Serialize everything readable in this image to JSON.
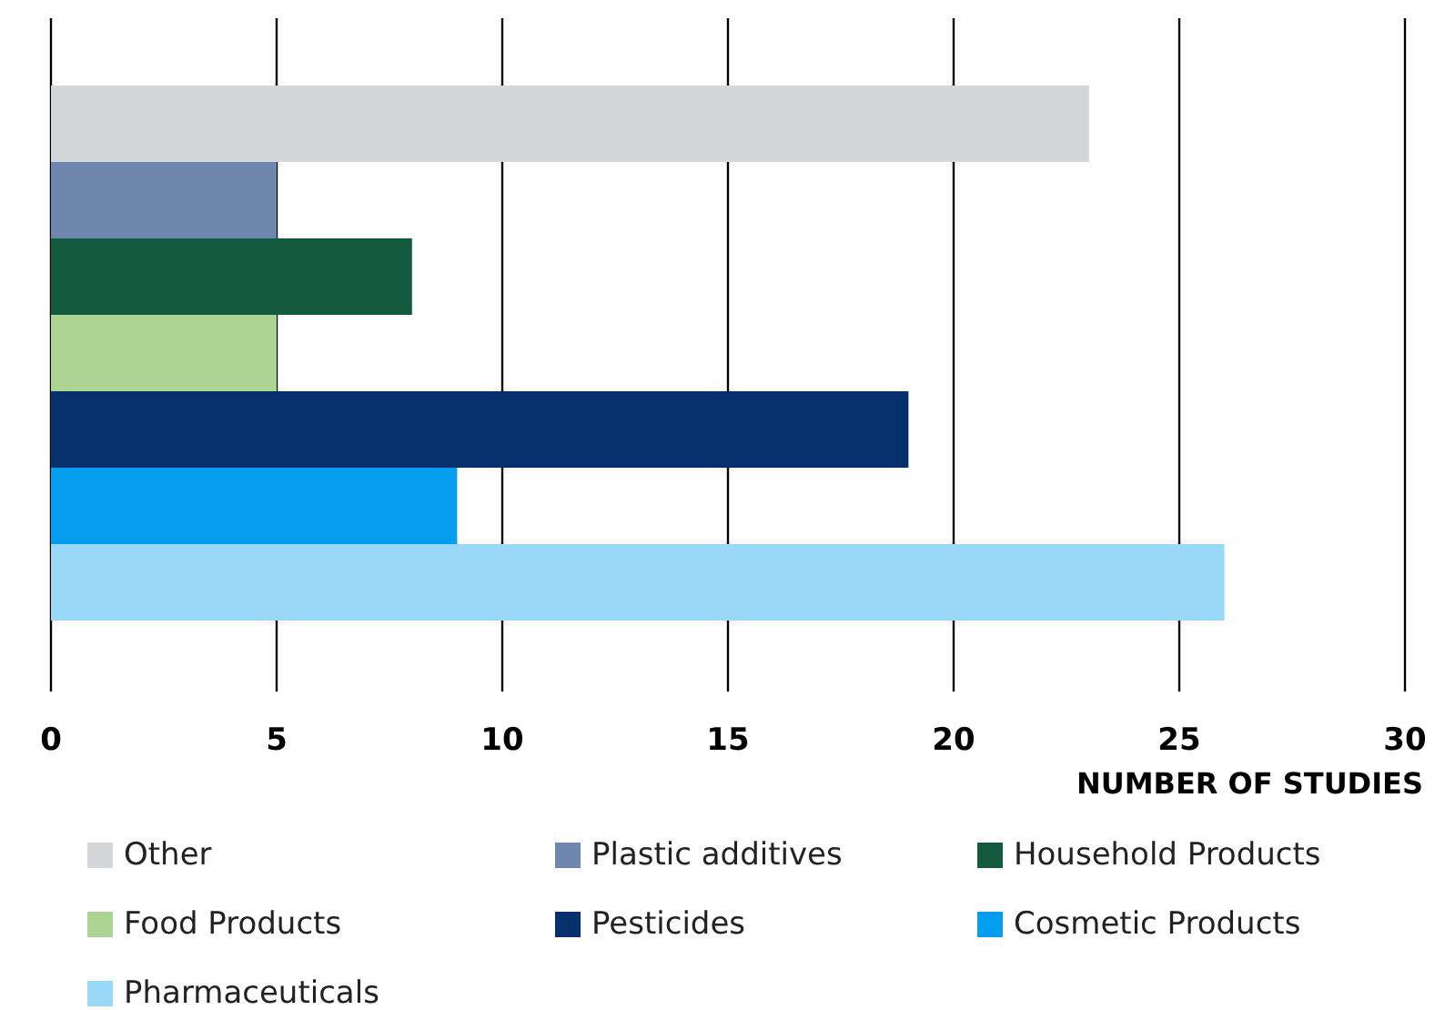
{
  "chart_data": {
    "type": "bar",
    "orientation": "horizontal",
    "xlabel": "NUMBER OF STUDIES",
    "categories": [
      null
    ],
    "series": [
      {
        "name": "Other",
        "color": "#d4d7da",
        "values": [
          23
        ]
      },
      {
        "name": "Plastic additives",
        "color": "#6f87ae",
        "values": [
          5
        ]
      },
      {
        "name": "Household Products",
        "color": "#145a3f",
        "values": [
          8
        ]
      },
      {
        "name": "Food Products",
        "color": "#aed494",
        "values": [
          5
        ]
      },
      {
        "name": "Pesticides",
        "color": "#06306b",
        "values": [
          19
        ]
      },
      {
        "name": "Cosmetic Products",
        "color": "#059ded",
        "values": [
          9
        ]
      },
      {
        "name": "Pharmaceuticals",
        "color": "#9ad8f8",
        "values": [
          26
        ]
      }
    ],
    "xlim": [
      0,
      30
    ],
    "xticks": [
      0,
      5,
      10,
      15,
      20,
      25,
      30
    ],
    "grid": "x",
    "legend": "bottom"
  }
}
